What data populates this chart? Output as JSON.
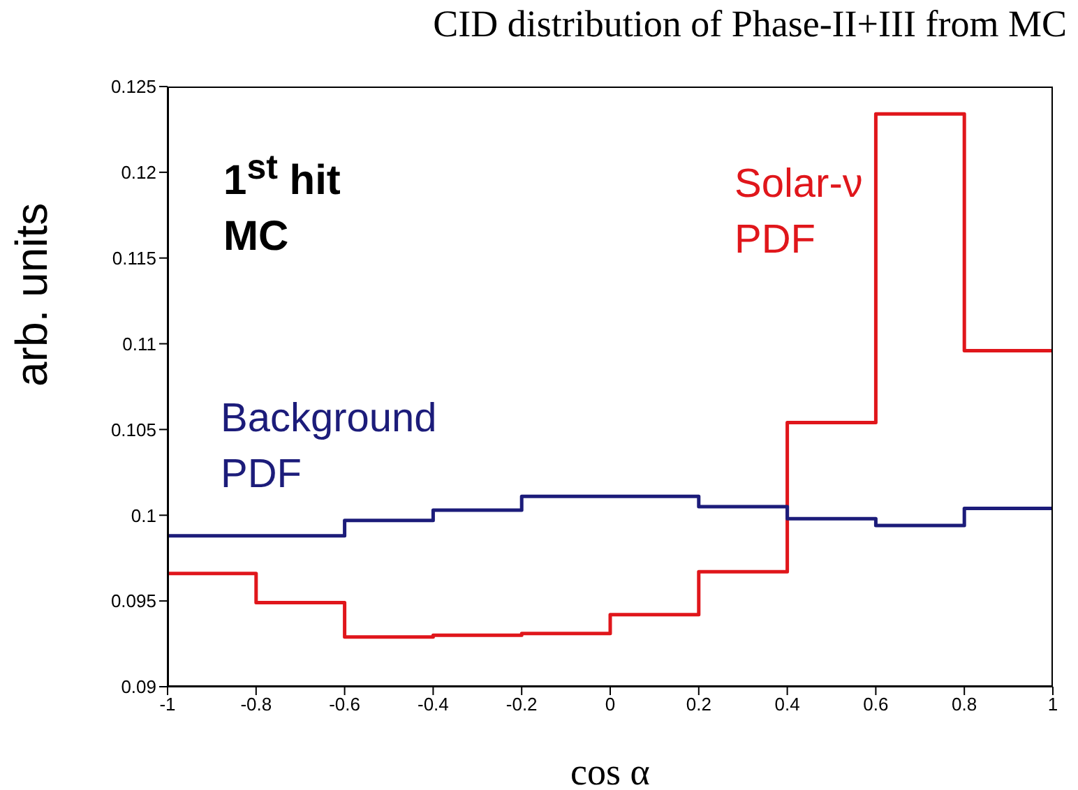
{
  "chart_data": {
    "type": "histogram",
    "title": "CID distribution of Phase-II+III from MC",
    "xlabel": "cos α",
    "ylabel": "arb. units",
    "bins": [
      -1,
      -0.8,
      -0.6,
      -0.4,
      -0.2,
      0,
      0.2,
      0.4,
      0.6,
      0.8,
      1
    ],
    "series": [
      {
        "name": "Solar-ν PDF",
        "color": "#e0161b",
        "values": [
          0.0966,
          0.0949,
          0.0929,
          0.093,
          0.0931,
          0.0942,
          0.0967,
          0.1054,
          0.1234,
          0.1096
        ]
      },
      {
        "name": "Background PDF",
        "color": "#1c1c7a",
        "values": [
          0.0988,
          0.0988,
          0.0997,
          0.1003,
          0.1011,
          0.1011,
          0.1005,
          0.0998,
          0.0994,
          0.1004
        ]
      }
    ],
    "annotations": [
      "1$^{st}$ hit\nMC"
    ],
    "xlim": [
      -1,
      1
    ],
    "xticks": [
      -1,
      -0.8,
      -0.6,
      -0.4,
      -0.2,
      0,
      0.2,
      0.4,
      0.6,
      0.8,
      1
    ],
    "ylim": [
      0.09,
      0.125
    ],
    "yticks": [
      0.09,
      0.095,
      0.1,
      0.105,
      0.11,
      0.115,
      0.12,
      0.125
    ],
    "grid": false,
    "legend": false,
    "marker": "none",
    "line_style": "solid"
  }
}
